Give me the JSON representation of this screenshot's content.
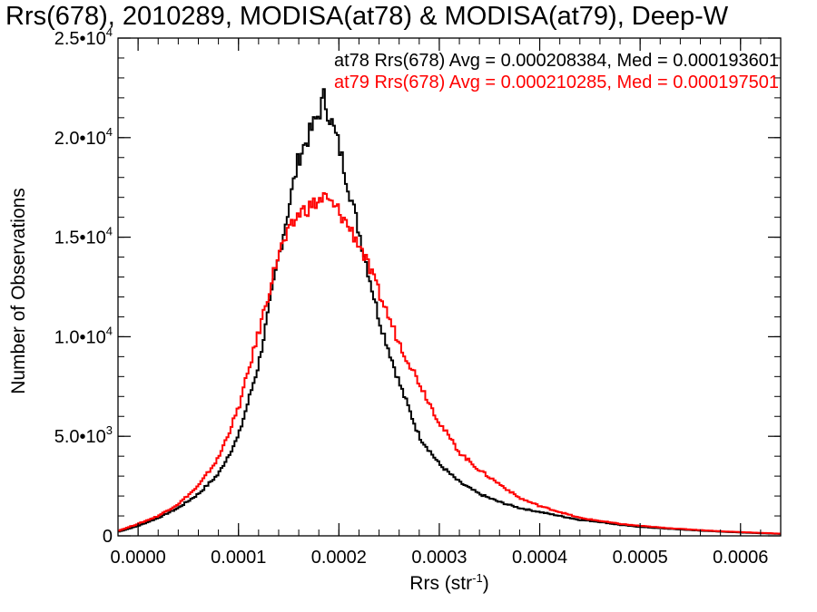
{
  "chart_data": {
    "type": "histogram",
    "title": "Rrs(678), 2010289, MODISA(at78) & MODISA(at79), Deep-W",
    "xlabel": "Rrs (str",
    "xlabel_exp": "-1",
    "xlabel_close": ")",
    "ylabel": "Number of Observations",
    "xlim": [
      -2e-05,
      0.00064
    ],
    "ylim": [
      0,
      25000
    ],
    "x_tick_labels": [
      "0.0000",
      "0.0001",
      "0.0002",
      "0.0003",
      "0.0004",
      "0.0005",
      "0.0006"
    ],
    "x_tick_values": [
      0,
      0.0001,
      0.0002,
      0.0003,
      0.0004,
      0.0005,
      0.0006
    ],
    "y_ticks": [
      {
        "value": 0,
        "mant": "0",
        "exp": ""
      },
      {
        "value": 5000,
        "mant": "5.0•10",
        "exp": "3"
      },
      {
        "value": 10000,
        "mant": "1.0•10",
        "exp": "4"
      },
      {
        "value": 15000,
        "mant": "1.5•10",
        "exp": "4"
      },
      {
        "value": 20000,
        "mant": "2.0•10",
        "exp": "4"
      },
      {
        "value": 25000,
        "mant": "2.5•10",
        "exp": "4"
      }
    ],
    "annotations": [
      {
        "text": "at78 Rrs(678) Avg = 0.000208384, Med = 0.000193601",
        "color": "#000000"
      },
      {
        "text": "at79 Rrs(678) Avg = 0.000210285, Med = 0.000197501",
        "color": "#ff0000"
      }
    ],
    "series": [
      {
        "name": "at78",
        "color": "#000000",
        "x": [
          -2e-05,
          0.0,
          2e-05,
          4e-05,
          6e-05,
          8e-05,
          0.0001,
          0.00012,
          0.00014,
          0.00016,
          0.00018,
          0.000185,
          0.0002,
          0.00022,
          0.00024,
          0.00026,
          0.00028,
          0.0003,
          0.00032,
          0.00034,
          0.00036,
          0.00038,
          0.0004,
          0.00042,
          0.00044,
          0.00046,
          0.00048,
          0.0005,
          0.00052,
          0.00054,
          0.00056,
          0.00058,
          0.0006,
          0.00062,
          0.00064
        ],
        "y": [
          200,
          500,
          900,
          1400,
          2100,
          3100,
          5000,
          8600,
          14000,
          19000,
          21200,
          22000,
          19600,
          15300,
          10900,
          7700,
          5000,
          3600,
          2700,
          2100,
          1700,
          1400,
          1200,
          1000,
          800,
          700,
          550,
          450,
          380,
          320,
          260,
          210,
          170,
          130,
          100
        ]
      },
      {
        "name": "at79",
        "color": "#ff0000",
        "x": [
          -2e-05,
          0.0,
          2e-05,
          4e-05,
          6e-05,
          8e-05,
          0.0001,
          0.00012,
          0.00014,
          0.00016,
          0.00018,
          0.000185,
          0.0002,
          0.00022,
          0.00024,
          0.00026,
          0.00028,
          0.0003,
          0.00032,
          0.00034,
          0.00036,
          0.00038,
          0.0004,
          0.00042,
          0.00044,
          0.00046,
          0.00048,
          0.0005,
          0.00052,
          0.00054,
          0.00056,
          0.00058,
          0.0006,
          0.00062,
          0.00064
        ],
        "y": [
          250,
          600,
          1000,
          1600,
          2500,
          3900,
          6400,
          10200,
          14200,
          16200,
          16800,
          17000,
          16300,
          14700,
          12200,
          9700,
          7700,
          5700,
          4200,
          3300,
          2600,
          1900,
          1500,
          1200,
          900,
          750,
          600,
          500,
          420,
          350,
          290,
          230,
          190,
          150,
          110
        ]
      }
    ]
  }
}
